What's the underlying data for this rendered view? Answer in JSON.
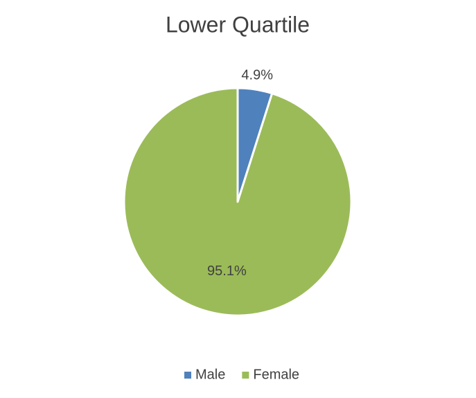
{
  "chart_data": {
    "type": "pie",
    "title": "Lower Quartile",
    "categories": [
      "Male",
      "Female"
    ],
    "values": [
      4.9,
      95.1
    ],
    "value_labels": [
      "4.9%",
      "95.1%"
    ],
    "colors": [
      "#4f81bd",
      "#9bbb59"
    ],
    "legend": "bottom"
  }
}
